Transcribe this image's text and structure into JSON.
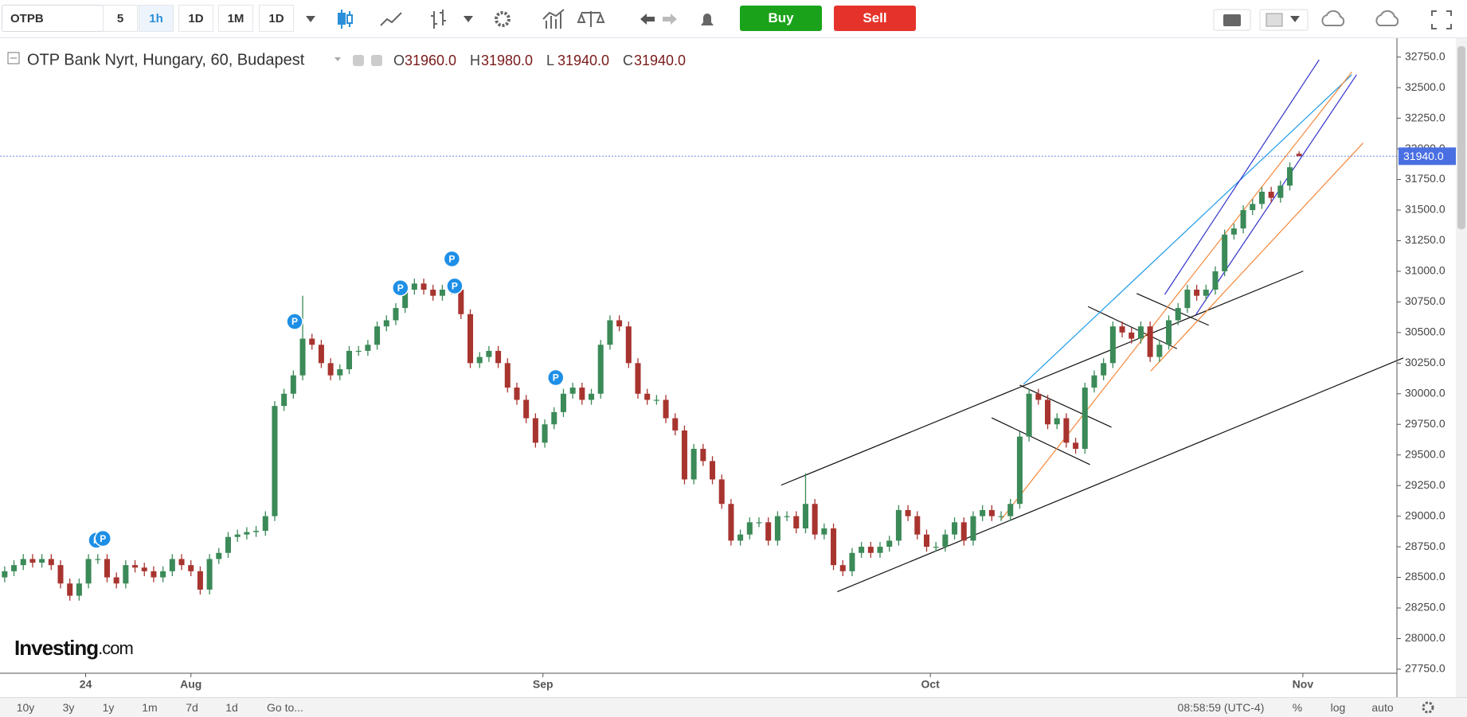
{
  "toolbar": {
    "symbol": "OTPB",
    "intervals": [
      "5",
      "1h",
      "1D",
      "1M",
      "1D"
    ],
    "buy": "Buy",
    "sell": "Sell"
  },
  "chart_data": {
    "type": "candlestick",
    "title": "OTP Bank Nyrt, Hungary, 60, Budapest",
    "ohlc_labels": [
      {
        "key": "O",
        "text": "31960.0"
      },
      {
        "key": "H",
        "text": "31980.0"
      },
      {
        "key": "L",
        "text": "31940.0"
      },
      {
        "key": "C",
        "text": "31940.0"
      }
    ],
    "watermark": [
      "Investing",
      ".com"
    ],
    "marker_label": "P",
    "last_label": "31940.0",
    "last_color": "#4a6fe3",
    "up_color": "#3b8a58",
    "down_color": "#a8342f",
    "xlim": [
      0,
      150
    ],
    "xticks": [
      {
        "value": 9.2,
        "label": "24"
      },
      {
        "value": 20.5,
        "label": "Aug"
      },
      {
        "value": 58.3,
        "label": "Sep"
      },
      {
        "value": 99.9,
        "label": "Oct"
      },
      {
        "value": 139.9,
        "label": "Nov"
      }
    ],
    "ylim": [
      27717,
      32904
    ],
    "yticks": [
      {
        "value": 27750,
        "label": "27750.0"
      },
      {
        "value": 28000,
        "label": "28000.0"
      },
      {
        "value": 28250,
        "label": "28250.0"
      },
      {
        "value": 28500,
        "label": "28500.0"
      },
      {
        "value": 28750,
        "label": "28750.0"
      },
      {
        "value": 29000,
        "label": "29000.0"
      },
      {
        "value": 29250,
        "label": "29250.0"
      },
      {
        "value": 29500,
        "label": "29500.0"
      },
      {
        "value": 29750,
        "label": "29750.0"
      },
      {
        "value": 30000,
        "label": "30000.0"
      },
      {
        "value": 30250,
        "label": "30250.0"
      },
      {
        "value": 30500,
        "label": "30500.0"
      },
      {
        "value": 30750,
        "label": "30750.0"
      },
      {
        "value": 31000,
        "label": "31000.0"
      },
      {
        "value": 31250,
        "label": "31250.0"
      },
      {
        "value": 31500,
        "label": "31500.0"
      },
      {
        "value": 31750,
        "label": "31750.0"
      },
      {
        "value": 32000,
        "label": "32000.0"
      },
      {
        "value": 32250,
        "label": "32250.0"
      },
      {
        "value": 32500,
        "label": "32500.0"
      },
      {
        "value": 32750,
        "label": "32750.0"
      }
    ],
    "open": [
      28500,
      28550,
      28600,
      28650,
      28620,
      28650,
      28600,
      28450,
      28350,
      28450,
      28650,
      28650,
      28500,
      28450,
      28600,
      28580,
      28550,
      28500,
      28550,
      28650,
      28600,
      28550,
      28400,
      28650,
      28700,
      28830,
      28850,
      28870,
      28880,
      29000,
      29900,
      30000,
      30150,
      30450,
      30400,
      30250,
      30150,
      30200,
      30350,
      30350,
      30400,
      30550,
      30600,
      30700,
      30850,
      30900,
      30850,
      30800,
      30850,
      30850,
      30650,
      30250,
      30300,
      30350,
      30250,
      30050,
      29950,
      29800,
      29600,
      29750,
      29850,
      30000,
      30050,
      29950,
      30000,
      30400,
      30600,
      30550,
      30250,
      30000,
      29950,
      29950,
      29800,
      29700,
      29300,
      29550,
      29450,
      29300,
      29100,
      28800,
      28850,
      28950,
      28950,
      28800,
      29000,
      29000,
      28900,
      29100,
      28850,
      28900,
      28600,
      28550,
      28700,
      28750,
      28700,
      28750,
      28800,
      29050,
      29000,
      28850,
      28750,
      28750,
      28850,
      28950,
      28800,
      29000,
      29050,
      29000,
      29000,
      29100,
      29650,
      30000,
      29950,
      29750,
      29800,
      29600,
      29550,
      30050,
      30150,
      30250,
      30550,
      30500,
      30450,
      30550,
      30300,
      30400,
      30600,
      30700,
      30850,
      30800,
      30850,
      31000,
      31300,
      31350,
      31500,
      31550,
      31650,
      31600,
      31700,
      31960
    ],
    "high": [
      28590,
      28640,
      28690,
      28690,
      28690,
      28690,
      28640,
      28490,
      28490,
      28690,
      28690,
      28690,
      28540,
      28640,
      28640,
      28620,
      28590,
      28590,
      28690,
      28690,
      28640,
      28590,
      28690,
      28740,
      28870,
      28890,
      28910,
      28920,
      29040,
      29940,
      30040,
      30190,
      30800,
      30490,
      30440,
      30290,
      30240,
      30390,
      30390,
      30440,
      30590,
      30640,
      30740,
      30890,
      30940,
      30940,
      30890,
      30890,
      30890,
      30890,
      30690,
      30340,
      30390,
      30390,
      30290,
      30090,
      29990,
      29840,
      29790,
      29890,
      30040,
      30090,
      30090,
      30040,
      30440,
      30640,
      30640,
      30590,
      30290,
      30040,
      29990,
      29990,
      29840,
      29740,
      29590,
      29590,
      29490,
      29340,
      29140,
      28890,
      28990,
      28990,
      28990,
      29040,
      29040,
      29040,
      29350,
      29140,
      28940,
      28940,
      28640,
      28740,
      28790,
      28790,
      28790,
      28840,
      29090,
      29090,
      29040,
      28890,
      28790,
      28890,
      28990,
      28990,
      29040,
      29090,
      29090,
      29040,
      29140,
      29690,
      30040,
      30040,
      29990,
      29840,
      29840,
      29640,
      30090,
      30190,
      30290,
      30590,
      30590,
      30540,
      30590,
      30590,
      30440,
      30640,
      30740,
      30890,
      30890,
      30890,
      31040,
      31340,
      31390,
      31540,
      31590,
      31690,
      31690,
      31740,
      31890,
      31980
    ],
    "low": [
      28460,
      28510,
      28560,
      28580,
      28580,
      28560,
      28410,
      28310,
      28310,
      28410,
      28610,
      28460,
      28410,
      28410,
      28540,
      28510,
      28460,
      28460,
      28510,
      28560,
      28510,
      28360,
      28360,
      28610,
      28660,
      28790,
      28810,
      28830,
      28840,
      28960,
      29860,
      29960,
      30110,
      30360,
      30210,
      30110,
      30110,
      30160,
      30310,
      30310,
      30360,
      30510,
      30560,
      30660,
      30810,
      30810,
      30760,
      30760,
      30810,
      30610,
      30210,
      30210,
      30260,
      30210,
      30010,
      29910,
      29760,
      29560,
      29560,
      29710,
      29810,
      29960,
      29910,
      29910,
      29960,
      30360,
      30510,
      30210,
      29960,
      29910,
      29910,
      29760,
      29660,
      29260,
      29260,
      29410,
      29260,
      29060,
      28760,
      28760,
      28810,
      28910,
      28760,
      28760,
      28960,
      28860,
      28860,
      28810,
      28810,
      28560,
      28510,
      28510,
      28660,
      28660,
      28660,
      28710,
      28760,
      28960,
      28810,
      28710,
      28710,
      28710,
      28810,
      28760,
      28760,
      28960,
      28960,
      28960,
      28960,
      29060,
      29610,
      29910,
      29710,
      29710,
      29560,
      29510,
      29510,
      30010,
      30110,
      30210,
      30460,
      30410,
      30410,
      30260,
      30260,
      30360,
      30560,
      30660,
      30760,
      30760,
      30810,
      30960,
      31260,
      31310,
      31460,
      31510,
      31560,
      31560,
      31660,
      31940
    ],
    "close": [
      28550,
      28600,
      28650,
      28620,
      28650,
      28600,
      28450,
      28350,
      28450,
      28650,
      28650,
      28500,
      28450,
      28600,
      28580,
      28550,
      28500,
      28550,
      28650,
      28600,
      28550,
      28400,
      28650,
      28700,
      28830,
      28850,
      28870,
      28880,
      29000,
      29900,
      30000,
      30150,
      30450,
      30400,
      30250,
      30150,
      30200,
      30350,
      30350,
      30400,
      30550,
      30600,
      30700,
      30850,
      30900,
      30850,
      30800,
      30850,
      30850,
      30650,
      30250,
      30300,
      30350,
      30250,
      30050,
      29950,
      29800,
      29600,
      29750,
      29850,
      30000,
      30050,
      29950,
      30000,
      30400,
      30600,
      30550,
      30250,
      30000,
      29950,
      29950,
      29800,
      29700,
      29300,
      29550,
      29450,
      29300,
      29100,
      28800,
      28850,
      28950,
      28950,
      28800,
      29000,
      29000,
      28900,
      29100,
      28850,
      28900,
      28600,
      28550,
      28700,
      28750,
      28700,
      28750,
      28800,
      29050,
      29000,
      28850,
      28750,
      28750,
      28850,
      28950,
      28800,
      29000,
      29050,
      29000,
      29000,
      29100,
      29650,
      30000,
      29950,
      29750,
      29800,
      29600,
      29550,
      30050,
      30150,
      30250,
      30550,
      30500,
      30450,
      30550,
      30300,
      30400,
      30600,
      30700,
      30850,
      30800,
      30850,
      31000,
      31300,
      31350,
      31500,
      31550,
      31650,
      31600,
      31700,
      31850,
      31940
    ]
  },
  "footer": {
    "ranges": [
      "10y",
      "3y",
      "1y",
      "1m",
      "7d",
      "1d"
    ],
    "goto": "Go to...",
    "time": "08:58:59 (UTC-4)",
    "percent": "%",
    "log": "log",
    "auto": "auto"
  }
}
